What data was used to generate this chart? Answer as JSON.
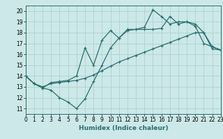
{
  "title": "",
  "xlabel": "Humidex (Indice chaleur)",
  "bg_color": "#cce8e8",
  "grid_color": "#aacccc",
  "line_color": "#2a6e6e",
  "xlim": [
    0,
    23
  ],
  "ylim": [
    10.5,
    20.5
  ],
  "xticks": [
    0,
    1,
    2,
    3,
    4,
    5,
    6,
    7,
    8,
    9,
    10,
    11,
    12,
    13,
    14,
    15,
    16,
    17,
    18,
    19,
    20,
    21,
    22,
    23
  ],
  "yticks": [
    11,
    12,
    13,
    14,
    15,
    16,
    17,
    18,
    19,
    20
  ],
  "line1_y": [
    14.0,
    13.3,
    12.9,
    12.7,
    12.0,
    11.6,
    11.0,
    11.9,
    13.5,
    15.0,
    16.6,
    17.5,
    18.2,
    18.3,
    18.3,
    18.3,
    18.4,
    19.5,
    18.8,
    19.0,
    18.8,
    18.0,
    16.7,
    16.4
  ],
  "line2_y": [
    14.0,
    13.3,
    13.0,
    13.3,
    13.4,
    13.5,
    13.6,
    13.8,
    14.1,
    14.5,
    14.9,
    15.3,
    15.6,
    15.9,
    16.2,
    16.5,
    16.8,
    17.1,
    17.4,
    17.7,
    18.0,
    18.0,
    16.5,
    16.4
  ],
  "line3_y": [
    14.0,
    13.3,
    12.9,
    13.4,
    13.5,
    13.6,
    14.0,
    16.6,
    15.0,
    17.3,
    18.2,
    17.5,
    18.3,
    18.3,
    18.5,
    20.1,
    19.5,
    18.8,
    19.0,
    19.0,
    18.6,
    17.0,
    16.7,
    16.4
  ],
  "xlabel_fontsize": 6.5,
  "tick_fontsize": 5.5,
  "lw": 0.9,
  "ms": 2.5
}
